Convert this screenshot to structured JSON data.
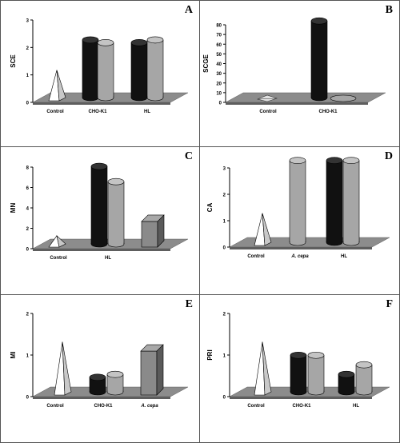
{
  "colors": {
    "floor": "#8c8c8c",
    "floor_edge": "#5e5e5e",
    "black_series": "#111111",
    "gray_series": "#a6a6a6",
    "white_series": "#ffffff",
    "box_series": "#8a8a8a"
  },
  "chart_data": [
    {
      "panel": "A",
      "type": "bar",
      "ylabel": "SCE",
      "ylim": [
        0,
        3
      ],
      "yticks": [
        "0",
        "1",
        "2",
        "3"
      ],
      "categories": [
        "Control",
        "CHO-K1",
        "HL"
      ],
      "bars": [
        {
          "category": "Control",
          "shape": "pyramid",
          "color": "white",
          "value": 1.0
        },
        {
          "category": "CHO-K1",
          "shape": "cylinder",
          "color": "black",
          "value": 2.1
        },
        {
          "category": "CHO-K1",
          "shape": "cylinder",
          "color": "gray",
          "value": 2.0
        },
        {
          "category": "HL",
          "shape": "cylinder",
          "color": "black",
          "value": 2.0
        },
        {
          "category": "HL",
          "shape": "cylinder",
          "color": "gray",
          "value": 2.1
        }
      ]
    },
    {
      "panel": "B",
      "type": "bar",
      "ylabel": "SCGE",
      "ylim": [
        0,
        80
      ],
      "yticks": [
        "0",
        "10",
        "20",
        "30",
        "40",
        "50",
        "60",
        "70",
        "80"
      ],
      "categories": [
        "Control",
        "CHO-K1"
      ],
      "bars": [
        {
          "category": "Control",
          "shape": "pyramid",
          "color": "white",
          "value": 0
        },
        {
          "category": "CHO-K1",
          "shape": "cylinder",
          "color": "black",
          "value": 79
        },
        {
          "category": "CHO-K1",
          "shape": "cylinder",
          "color": "gray",
          "value": 0
        }
      ]
    },
    {
      "panel": "C",
      "type": "bar",
      "ylabel": "MN",
      "ylim": [
        0,
        8
      ],
      "yticks": [
        "0",
        "2",
        "4",
        "6",
        "8"
      ],
      "categories": [
        "Control",
        "HL"
      ],
      "bars": [
        {
          "category": "Control",
          "shape": "pyramid",
          "color": "white",
          "value": 0.8
        },
        {
          "category": "HL",
          "shape": "cylinder",
          "color": "black",
          "value": 7.6
        },
        {
          "category": "HL",
          "shape": "cylinder",
          "color": "gray",
          "value": 6.1
        },
        {
          "category": "",
          "shape": "box",
          "color": "box",
          "value": 2.2
        }
      ]
    },
    {
      "panel": "D",
      "type": "bar",
      "ylabel": "CA",
      "ylim": [
        0,
        3
      ],
      "yticks": [
        "0",
        "1",
        "2",
        "3"
      ],
      "categories": [
        "Control",
        "A. cepa",
        "HL"
      ],
      "bars": [
        {
          "category": "Control",
          "shape": "pyramid",
          "color": "white",
          "value": 1.1
        },
        {
          "category": "A. cepa",
          "shape": "cylinder",
          "color": "gray",
          "value": 3.1
        },
        {
          "category": "HL",
          "shape": "cylinder",
          "color": "black",
          "value": 3.1
        },
        {
          "category": "HL",
          "shape": "cylinder",
          "color": "gray",
          "value": 3.1
        }
      ]
    },
    {
      "panel": "E",
      "type": "bar",
      "ylabel": "MI",
      "ylim": [
        0,
        2
      ],
      "yticks": [
        "0",
        "1",
        "2"
      ],
      "categories": [
        "Control",
        "CHO-K1",
        "A. cepa"
      ],
      "bars": [
        {
          "category": "Control",
          "shape": "pyramid",
          "color": "white",
          "value": 1.2
        },
        {
          "category": "CHO-K1",
          "shape": "cylinder",
          "color": "black",
          "value": 0.35
        },
        {
          "category": "CHO-K1",
          "shape": "cylinder",
          "color": "gray",
          "value": 0.42
        },
        {
          "category": "A. cepa",
          "shape": "box",
          "color": "box",
          "value": 0.98
        }
      ]
    },
    {
      "panel": "F",
      "type": "bar",
      "ylabel": "PRI",
      "ylim": [
        0,
        2
      ],
      "yticks": [
        "0",
        "1",
        "2"
      ],
      "categories": [
        "Control",
        "CHO-K1",
        "HL"
      ],
      "bars": [
        {
          "category": "Control",
          "shape": "pyramid",
          "color": "white",
          "value": 1.2
        },
        {
          "category": "CHO-K1",
          "shape": "cylinder",
          "color": "black",
          "value": 0.88
        },
        {
          "category": "CHO-K1",
          "shape": "cylinder",
          "color": "gray",
          "value": 0.88
        },
        {
          "category": "HL",
          "shape": "cylinder",
          "color": "black",
          "value": 0.42
        },
        {
          "category": "HL",
          "shape": "cylinder",
          "color": "gray",
          "value": 0.65
        }
      ]
    }
  ]
}
